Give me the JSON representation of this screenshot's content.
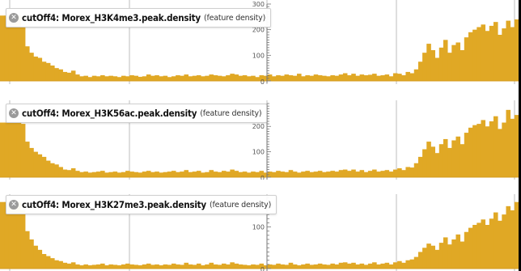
{
  "tracks": [
    {
      "name": "cutOff4: Morex_H3K4me3.peak.density",
      "kind": "(feature density)",
      "close_icon": "close-icon",
      "chart_data": {
        "type": "bar",
        "ylim": [
          0,
          300
        ],
        "ticks": [
          0,
          100,
          200,
          300
        ],
        "bar_color": "#e0a825",
        "values": [
          255,
          255,
          255,
          255,
          255,
          210,
          135,
          110,
          95,
          90,
          75,
          70,
          60,
          50,
          45,
          35,
          32,
          40,
          25,
          18,
          20,
          15,
          20,
          18,
          22,
          18,
          20,
          18,
          15,
          20,
          18,
          22,
          20,
          16,
          18,
          25,
          20,
          22,
          18,
          20,
          15,
          18,
          22,
          20,
          25,
          18,
          20,
          22,
          18,
          20,
          25,
          22,
          20,
          18,
          22,
          28,
          25,
          20,
          22,
          18,
          20,
          15,
          22,
          20,
          25,
          18,
          22,
          20,
          25,
          22,
          20,
          28,
          18,
          22,
          20,
          25,
          22,
          20,
          18,
          22,
          20,
          25,
          30,
          22,
          28,
          20,
          25,
          22,
          24,
          28,
          20,
          22,
          25,
          18,
          30,
          28,
          22,
          35,
          30,
          45,
          75,
          110,
          145,
          120,
          90,
          130,
          160,
          110,
          140,
          150,
          120,
          170,
          190,
          200,
          210,
          220,
          195,
          215,
          230,
          180,
          205,
          235,
          210,
          240
        ]
      }
    },
    {
      "name": "cutOff4: Morex_H3K56ac.peak.density",
      "kind": "(feature density)",
      "close_icon": "close-icon",
      "chart_data": {
        "type": "bar",
        "ylim": [
          0,
          290
        ],
        "ticks": [
          0,
          100,
          200
        ],
        "bar_color": "#e0a825",
        "values": [
          215,
          215,
          215,
          215,
          215,
          210,
          140,
          115,
          100,
          90,
          80,
          65,
          55,
          50,
          40,
          30,
          28,
          35,
          25,
          20,
          22,
          18,
          20,
          22,
          25,
          18,
          20,
          22,
          18,
          20,
          25,
          22,
          20,
          18,
          22,
          25,
          20,
          22,
          18,
          20,
          22,
          25,
          20,
          22,
          28,
          20,
          22,
          25,
          18,
          20,
          28,
          22,
          20,
          25,
          22,
          30,
          25,
          20,
          22,
          18,
          22,
          20,
          25,
          18,
          22,
          20,
          25,
          22,
          20,
          28,
          22,
          18,
          22,
          25,
          20,
          22,
          25,
          20,
          22,
          25,
          22,
          28,
          30,
          25,
          30,
          22,
          28,
          20,
          25,
          30,
          22,
          25,
          28,
          22,
          30,
          35,
          28,
          40,
          38,
          55,
          80,
          110,
          140,
          120,
          95,
          130,
          150,
          115,
          145,
          160,
          130,
          175,
          195,
          205,
          210,
          225,
          200,
          220,
          240,
          190,
          215,
          265,
          230,
          245
        ]
      }
    },
    {
      "name": "cutOff4: Morex_H3K27me3.peak.density",
      "kind": "(feature density)",
      "close_icon": "close-icon",
      "chart_data": {
        "type": "bar",
        "ylim": [
          0,
          175
        ],
        "ticks": [
          0,
          100
        ],
        "bar_color": "#e0a825",
        "values": [
          160,
          160,
          160,
          160,
          160,
          140,
          90,
          70,
          55,
          45,
          35,
          30,
          25,
          20,
          18,
          14,
          12,
          15,
          10,
          8,
          10,
          8,
          9,
          10,
          12,
          8,
          10,
          9,
          8,
          10,
          12,
          10,
          9,
          8,
          10,
          12,
          9,
          10,
          8,
          10,
          9,
          12,
          10,
          9,
          14,
          10,
          9,
          12,
          8,
          10,
          14,
          10,
          9,
          12,
          10,
          15,
          12,
          10,
          9,
          8,
          10,
          9,
          12,
          8,
          10,
          9,
          12,
          10,
          9,
          14,
          10,
          8,
          10,
          12,
          9,
          10,
          12,
          10,
          9,
          12,
          10,
          14,
          15,
          12,
          14,
          10,
          12,
          9,
          12,
          15,
          10,
          12,
          14,
          10,
          15,
          18,
          14,
          20,
          22,
          28,
          40,
          50,
          60,
          55,
          45,
          62,
          75,
          58,
          70,
          82,
          65,
          88,
          98,
          105,
          110,
          118,
          105,
          120,
          135,
          115,
          130,
          150,
          140,
          160
        ]
      }
    }
  ]
}
